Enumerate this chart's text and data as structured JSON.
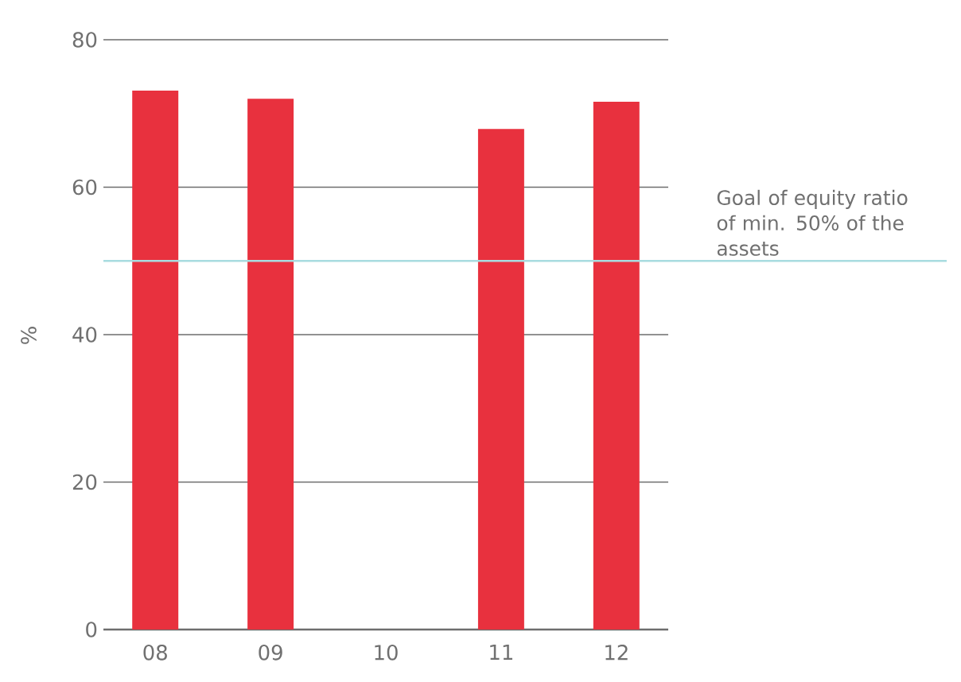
{
  "chart_data": {
    "type": "bar",
    "ylabel": "%",
    "categories": [
      "08",
      "09",
      "10",
      "11",
      "12"
    ],
    "values": [
      73.1,
      72.0,
      null,
      67.9,
      71.6
    ],
    "color": "#e8313e",
    "ylim": [
      0,
      80
    ],
    "yticks": [
      0,
      20,
      40,
      60,
      80
    ],
    "grid": "y",
    "ref_lines": [
      {
        "axis": "y",
        "value": 50,
        "label": "Goal of equity ratio of min. 50% of the assets",
        "color": "#a8dce0"
      }
    ]
  }
}
